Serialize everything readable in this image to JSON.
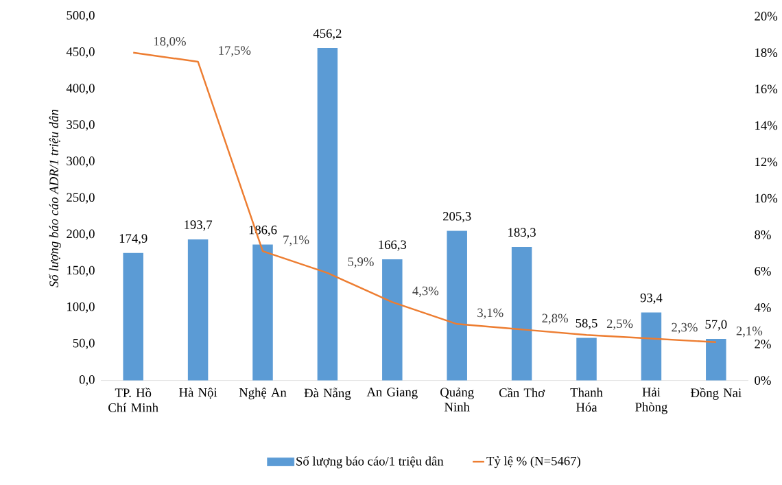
{
  "chart_data": {
    "type": "bar",
    "ylabel": "Số lượng báo cáo ADR/1 triệu dân",
    "categories": [
      "TP. Hồ Chí Minh",
      "Hà Nội",
      "Nghệ An",
      "Đà Nẵng",
      "An Giang",
      "Quảng Ninh",
      "Cần Thơ",
      "Thanh Hóa",
      "Hải Phòng",
      "Đồng Nai"
    ],
    "series": [
      {
        "name": "Số lượng báo cáo/1 triệu dân",
        "type": "bar",
        "color": "#5b9bd5",
        "values": [
          174.9,
          193.7,
          186.6,
          456.2,
          166.3,
          205.3,
          183.3,
          58.5,
          93.4,
          57.0
        ],
        "value_labels": [
          "174,9",
          "193,7",
          "186,6",
          "456,2",
          "166,3",
          "205,3",
          "183,3",
          "58,5",
          "93,4",
          "57,0"
        ]
      },
      {
        "name": "Tỷ lệ % (N=5467)",
        "type": "line",
        "axis": "y2",
        "color": "#ed7d31",
        "values": [
          18.0,
          17.5,
          7.1,
          5.9,
          4.3,
          3.1,
          2.8,
          2.5,
          2.3,
          2.1
        ],
        "value_labels": [
          "18,0%",
          "17,5%",
          "7,1%",
          "5,9%",
          "4,3%",
          "3,1%",
          "2,8%",
          "2,5%",
          "2,3%",
          "2,1%"
        ]
      }
    ],
    "ylim": [
      0,
      500
    ],
    "yticks": [
      {
        "value": 0,
        "label": "0,0"
      },
      {
        "value": 50,
        "label": "50,0"
      },
      {
        "value": 100,
        "label": "100,0"
      },
      {
        "value": 150,
        "label": "150,0"
      },
      {
        "value": 200,
        "label": "200,0"
      },
      {
        "value": 250,
        "label": "250,0"
      },
      {
        "value": 300,
        "label": "300,0"
      },
      {
        "value": 350,
        "label": "350,0"
      },
      {
        "value": 400,
        "label": "400,0"
      },
      {
        "value": 450,
        "label": "450,0"
      },
      {
        "value": 500,
        "label": "500,0"
      }
    ],
    "y2lim": [
      0,
      20
    ],
    "y2ticks": [
      {
        "value": 0,
        "label": "0%"
      },
      {
        "value": 2,
        "label": "2%"
      },
      {
        "value": 4,
        "label": "4%"
      },
      {
        "value": 6,
        "label": "6%"
      },
      {
        "value": 8,
        "label": "8%"
      },
      {
        "value": 10,
        "label": "10%"
      },
      {
        "value": 12,
        "label": "12%"
      },
      {
        "value": 14,
        "label": "14%"
      },
      {
        "value": 16,
        "label": "16%"
      },
      {
        "value": 18,
        "label": "18%"
      },
      {
        "value": 20,
        "label": "20%"
      }
    ],
    "legend": "bottom",
    "grid": false,
    "marker": "none",
    "line_style": "solid"
  }
}
